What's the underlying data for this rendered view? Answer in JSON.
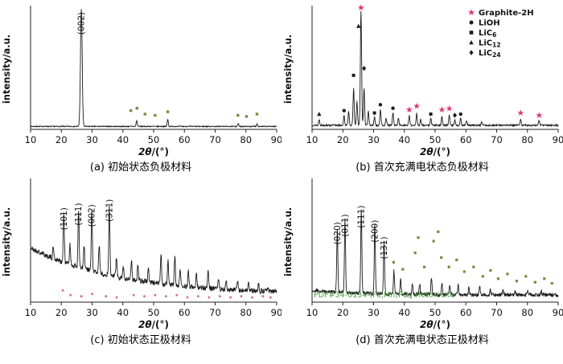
{
  "figure": {
    "background": "#ffffff"
  },
  "chart_data": [
    {
      "key": "a",
      "type": "line",
      "caption": "(a) 初始状态负极材料",
      "xlabel": "2θ/(°)",
      "ylabel": "intensity/a.u.",
      "xlim": [
        10,
        90
      ],
      "xticks": [
        10,
        20,
        30,
        40,
        50,
        60,
        70,
        80,
        90
      ],
      "trace_color": "#1a1a1a",
      "baseline": {
        "base": 0.025,
        "amp": 0.0,
        "tau": 30
      },
      "noise": 0.004,
      "seed": 7,
      "peaks": [
        {
          "x": 26.5,
          "h": 1.0,
          "w": 0.28,
          "label": "(002)"
        },
        {
          "x": 44.5,
          "h": 0.05
        },
        {
          "x": 54.6,
          "h": 0.06
        },
        {
          "x": 77.5,
          "h": 0.025
        },
        {
          "x": 83.6,
          "h": 0.02
        }
      ],
      "markers": [
        {
          "sym": "square",
          "color": "#7a8b3d",
          "size": 3.4,
          "pts": [
            [
              42.6,
              0.16
            ],
            [
              44.6,
              0.18
            ],
            [
              47.2,
              0.13
            ],
            [
              50.5,
              0.12
            ],
            [
              54.6,
              0.15
            ],
            [
              77.4,
              0.12
            ],
            [
              80.2,
              0.11
            ],
            [
              83.6,
              0.13
            ]
          ]
        }
      ]
    },
    {
      "key": "b",
      "type": "line",
      "caption": "(b) 首次充满电状态负极材料",
      "xlabel": "2θ/(°)",
      "ylabel": "intensity/a.u.",
      "xlim": [
        10,
        90
      ],
      "xticks": [
        10,
        20,
        30,
        40,
        50,
        60,
        70,
        80,
        90
      ],
      "trace_color": "#1a1a1a",
      "baseline": {
        "base": 0.035,
        "amp": 0.0,
        "tau": 30
      },
      "noise": 0.007,
      "seed": 13,
      "peaks": [
        {
          "x": 12.3,
          "h": 0.05
        },
        {
          "x": 20.4,
          "h": 0.08
        },
        {
          "x": 21.9,
          "h": 0.12
        },
        {
          "x": 23.5,
          "h": 0.32
        },
        {
          "x": 24.6,
          "h": 0.2
        },
        {
          "x": 25.9,
          "h": 0.97,
          "w": 0.2
        },
        {
          "x": 26.9,
          "h": 0.32
        },
        {
          "x": 28.3,
          "h": 0.12
        },
        {
          "x": 30.3,
          "h": 0.07
        },
        {
          "x": 32.2,
          "h": 0.14
        },
        {
          "x": 34.1,
          "h": 0.06
        },
        {
          "x": 36.3,
          "h": 0.11
        },
        {
          "x": 38.1,
          "h": 0.06
        },
        {
          "x": 41.6,
          "h": 0.08
        },
        {
          "x": 44.0,
          "h": 0.1
        },
        {
          "x": 45.3,
          "h": 0.05
        },
        {
          "x": 48.6,
          "h": 0.06
        },
        {
          "x": 52.2,
          "h": 0.08
        },
        {
          "x": 54.6,
          "h": 0.09
        },
        {
          "x": 56.4,
          "h": 0.05
        },
        {
          "x": 58.3,
          "h": 0.06
        },
        {
          "x": 60.2,
          "h": 0.04
        },
        {
          "x": 65.1,
          "h": 0.03
        },
        {
          "x": 77.8,
          "h": 0.05
        },
        {
          "x": 83.8,
          "h": 0.04
        }
      ],
      "markers": [
        {
          "sym": "star",
          "color": "#e8336d",
          "size": 4.5,
          "pts": [
            [
              25.9,
              1.04
            ],
            [
              41.6,
              0.17
            ],
            [
              44.0,
              0.2
            ],
            [
              52.2,
              0.17
            ],
            [
              54.6,
              0.18
            ],
            [
              77.8,
              0.14
            ],
            [
              83.8,
              0.12
            ]
          ]
        },
        {
          "sym": "circle",
          "color": "#1a1a1a",
          "size": 4,
          "pts": [
            [
              20.4,
              0.16
            ],
            [
              32.2,
              0.21
            ],
            [
              36.3,
              0.18
            ],
            [
              58.3,
              0.13
            ]
          ]
        },
        {
          "sym": "square",
          "color": "#1a1a1a",
          "size": 4,
          "pts": [
            [
              23.5,
              0.46
            ],
            [
              30.3,
              0.14
            ],
            [
              48.6,
              0.13
            ]
          ]
        },
        {
          "sym": "triangle",
          "color": "#1a1a1a",
          "size": 4.5,
          "pts": [
            [
              12.3,
              0.13
            ],
            [
              25.1,
              0.88
            ]
          ]
        },
        {
          "sym": "diamond",
          "color": "#1a1a1a",
          "size": 4.5,
          "pts": [
            [
              26.9,
              0.52
            ],
            [
              56.4,
              0.12
            ]
          ]
        }
      ],
      "legend": [
        {
          "sym": "star",
          "color": "#e8336d",
          "text": "Graphite-2H"
        },
        {
          "sym": "circle",
          "color": "#1a1a1a",
          "text": "LiOH"
        },
        {
          "sym": "square",
          "color": "#1a1a1a",
          "text": "LiC",
          "sub": "6"
        },
        {
          "sym": "triangle",
          "color": "#1a1a1a",
          "text": "LiC",
          "sub": "12"
        },
        {
          "sym": "diamond",
          "color": "#1a1a1a",
          "text": "LiC",
          "sub": "24"
        }
      ]
    },
    {
      "key": "c",
      "type": "line",
      "caption": "(c) 初始状态正极材料",
      "xlabel": "2θ/(°)",
      "ylabel": "intensity/a.u.",
      "xlim": [
        10,
        90
      ],
      "xticks": [
        10,
        20,
        30,
        40,
        50,
        60,
        70,
        80,
        90
      ],
      "trace_color": "#1a1a1a",
      "baseline": {
        "base": 0.06,
        "amp": 0.4,
        "tau": 30
      },
      "noise": 0.022,
      "seed": 21,
      "peaks": [
        {
          "x": 17.4,
          "h": 0.1
        },
        {
          "x": 20.8,
          "h": 0.42,
          "label": "(101)"
        },
        {
          "x": 22.8,
          "h": 0.18
        },
        {
          "x": 25.6,
          "h": 0.5,
          "label": "(111)"
        },
        {
          "x": 27.4,
          "h": 0.2
        },
        {
          "x": 29.9,
          "h": 0.52,
          "label": "(002)"
        },
        {
          "x": 32.3,
          "h": 0.24
        },
        {
          "x": 35.6,
          "h": 0.6,
          "label": "(311)"
        },
        {
          "x": 37.9,
          "h": 0.16
        },
        {
          "x": 40.1,
          "h": 0.1
        },
        {
          "x": 42.8,
          "h": 0.17
        },
        {
          "x": 44.9,
          "h": 0.14
        },
        {
          "x": 48.3,
          "h": 0.12
        },
        {
          "x": 52.4,
          "h": 0.26
        },
        {
          "x": 54.7,
          "h": 0.2
        },
        {
          "x": 56.9,
          "h": 0.24
        },
        {
          "x": 58.6,
          "h": 0.14
        },
        {
          "x": 61.3,
          "h": 0.13
        },
        {
          "x": 63.9,
          "h": 0.11
        },
        {
          "x": 67.7,
          "h": 0.15
        },
        {
          "x": 71.1,
          "h": 0.09
        },
        {
          "x": 73.6,
          "h": 0.08
        },
        {
          "x": 77.3,
          "h": 0.08
        },
        {
          "x": 80.9,
          "h": 0.07
        },
        {
          "x": 84.1,
          "h": 0.06
        },
        {
          "x": 87.1,
          "h": 0.05
        }
      ],
      "markers": [
        {
          "sym": "dot",
          "color": "#e0608e",
          "size": 3,
          "pts": [
            [
              20.5,
              0.1
            ],
            [
              23.0,
              0.06
            ],
            [
              26.5,
              0.05
            ],
            [
              30.0,
              0.07
            ],
            [
              34.5,
              0.05
            ],
            [
              38.0,
              0.04
            ],
            [
              43.5,
              0.06
            ],
            [
              47.0,
              0.05
            ],
            [
              50.5,
              0.06
            ],
            [
              54.0,
              0.05
            ],
            [
              57.5,
              0.06
            ],
            [
              61.0,
              0.04
            ],
            [
              64.5,
              0.05
            ],
            [
              68.0,
              0.04
            ],
            [
              71.5,
              0.05
            ],
            [
              75.0,
              0.04
            ],
            [
              78.5,
              0.05
            ],
            [
              82.0,
              0.04
            ],
            [
              85.5,
              0.05
            ],
            [
              88.0,
              0.04
            ]
          ]
        }
      ]
    },
    {
      "key": "d",
      "type": "line",
      "caption": "(d) 首次充满电状态正极材料",
      "xlabel": "2θ/(°)",
      "ylabel": "intensity/a.u.",
      "xlim": [
        10,
        90
      ],
      "xticks": [
        10,
        20,
        30,
        40,
        50,
        60,
        70,
        80,
        90
      ],
      "trace_color": "#1a1a1a",
      "baseline": {
        "base": 0.06,
        "amp": 0.04,
        "tau": 18
      },
      "noise": 0.016,
      "seed": 29,
      "peaks": [
        {
          "x": 18.2,
          "h": 0.55,
          "label": "(020)"
        },
        {
          "x": 20.7,
          "h": 0.62,
          "label": "(011)"
        },
        {
          "x": 26.0,
          "h": 0.7,
          "label": "(111)"
        },
        {
          "x": 30.4,
          "h": 0.58,
          "label": "(200)"
        },
        {
          "x": 33.4,
          "h": 0.44,
          "label": "(131)"
        },
        {
          "x": 36.6,
          "h": 0.2
        },
        {
          "x": 38.8,
          "h": 0.12
        },
        {
          "x": 42.6,
          "h": 0.1
        },
        {
          "x": 45.0,
          "h": 0.08
        },
        {
          "x": 48.8,
          "h": 0.13
        },
        {
          "x": 52.2,
          "h": 0.1
        },
        {
          "x": 54.8,
          "h": 0.08
        },
        {
          "x": 57.5,
          "h": 0.08
        },
        {
          "x": 61.0,
          "h": 0.06
        },
        {
          "x": 64.5,
          "h": 0.07
        },
        {
          "x": 68.0,
          "h": 0.05
        },
        {
          "x": 72.0,
          "h": 0.05
        },
        {
          "x": 76.0,
          "h": 0.04
        },
        {
          "x": 80.1,
          "h": 0.04
        },
        {
          "x": 84.5,
          "h": 0.04
        }
      ],
      "markers": [
        {
          "sym": "square",
          "color": "#7a8b3d",
          "size": 3.2,
          "pts": [
            [
              36.5,
              0.34
            ],
            [
              39.5,
              0.28
            ],
            [
              43.5,
              0.42
            ],
            [
              44.5,
              0.55
            ],
            [
              46.5,
              0.3
            ],
            [
              49.5,
              0.52
            ],
            [
              51.0,
              0.6
            ],
            [
              52.0,
              0.38
            ],
            [
              54.5,
              0.3
            ],
            [
              57.0,
              0.36
            ],
            [
              59.5,
              0.26
            ],
            [
              62.5,
              0.3
            ],
            [
              65.5,
              0.22
            ],
            [
              68.0,
              0.27
            ],
            [
              70.5,
              0.2
            ],
            [
              73.5,
              0.24
            ],
            [
              76.5,
              0.18
            ],
            [
              79.5,
              0.22
            ],
            [
              82.5,
              0.17
            ],
            [
              85.5,
              0.2
            ],
            [
              88.0,
              0.16
            ]
          ]
        }
      ],
      "annotation": {
        "pre": "PDF#34-0134-(Fe,Mn)PO",
        "sub": "4",
        "post": "-Heterosite",
        "color": "#4a9e3f"
      }
    }
  ]
}
